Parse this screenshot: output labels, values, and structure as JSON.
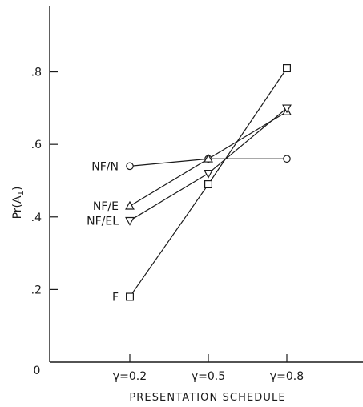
{
  "chart_data": {
    "type": "line",
    "title": "",
    "xlabel": "PRESENTATION SCHEDULE",
    "ylabel": "Pr(A1)",
    "categories": [
      "γ=0.2",
      "γ=0.5",
      "γ=0.8"
    ],
    "origin_label": "0",
    "y_ticks": [
      ".2",
      ".4",
      ".6",
      ".8"
    ],
    "ylim": [
      0,
      0.98
    ],
    "grid": false,
    "legend": "inline labels at left of each series",
    "series": [
      {
        "name": "NF/N",
        "marker": "circle",
        "values": [
          0.54,
          0.56,
          0.56
        ]
      },
      {
        "name": "NF/E",
        "marker": "triangle-up",
        "values": [
          0.43,
          0.56,
          0.69
        ]
      },
      {
        "name": "NF/EL",
        "marker": "triangle-down",
        "values": [
          0.39,
          0.52,
          0.7
        ]
      },
      {
        "name": "F",
        "marker": "square",
        "values": [
          0.18,
          0.49,
          0.81
        ]
      }
    ],
    "colors": {
      "ink": "#1a1a1a",
      "background": "#ffffff"
    }
  }
}
